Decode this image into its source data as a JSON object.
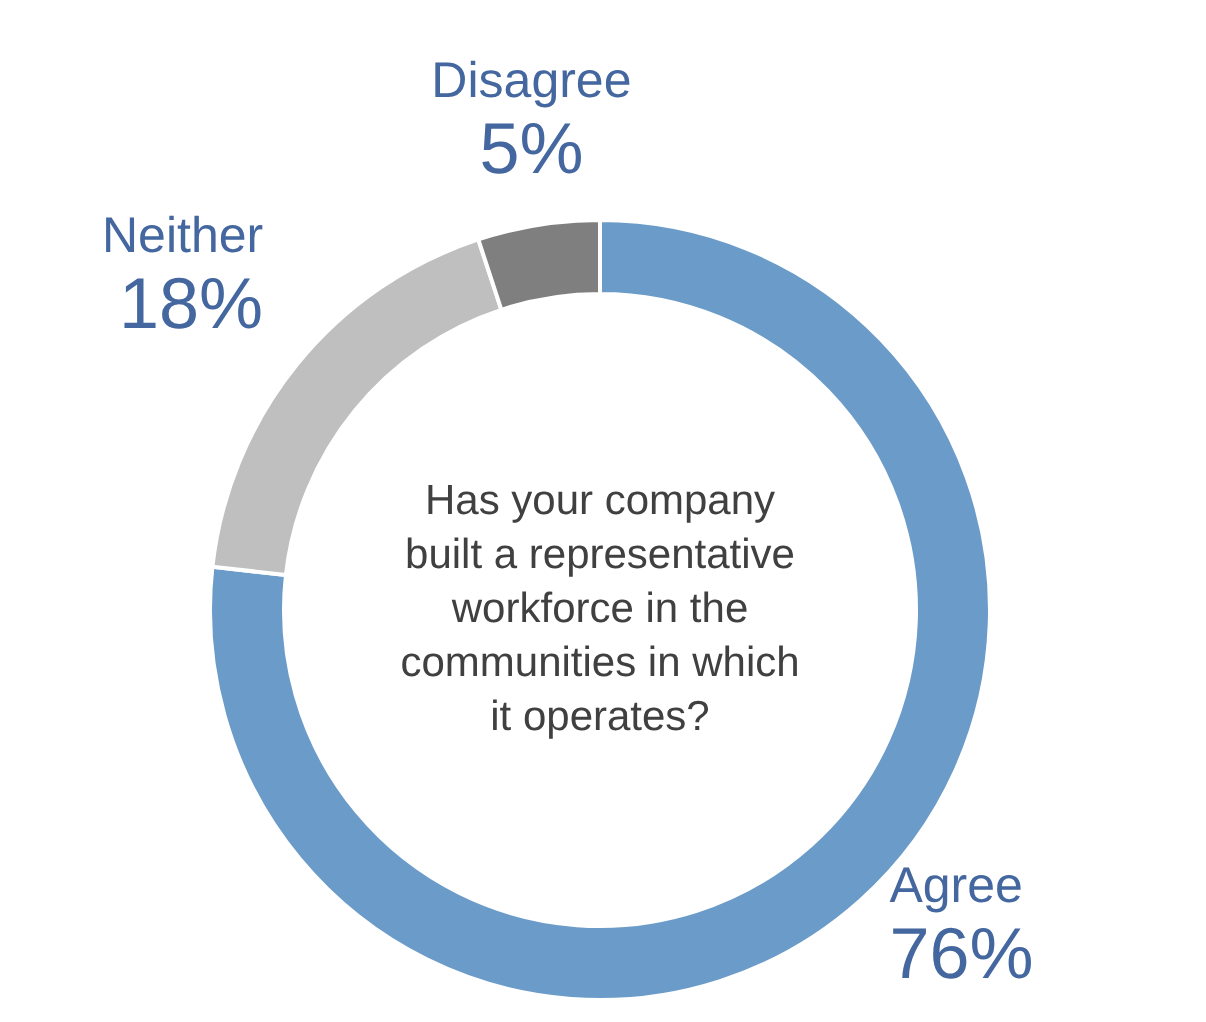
{
  "chart_data": {
    "type": "donut",
    "title": "Has your company\nbuilt a representative\nworkforce in the\ncommunities in which\nit operates?",
    "categories": [
      "Agree",
      "Neither",
      "Disagree"
    ],
    "values": [
      76,
      18,
      5
    ],
    "value_labels": [
      "76%",
      "18%",
      "5%"
    ],
    "colors": [
      "#6b9bc8",
      "#bfbfbf",
      "#7f7f7f"
    ]
  }
}
